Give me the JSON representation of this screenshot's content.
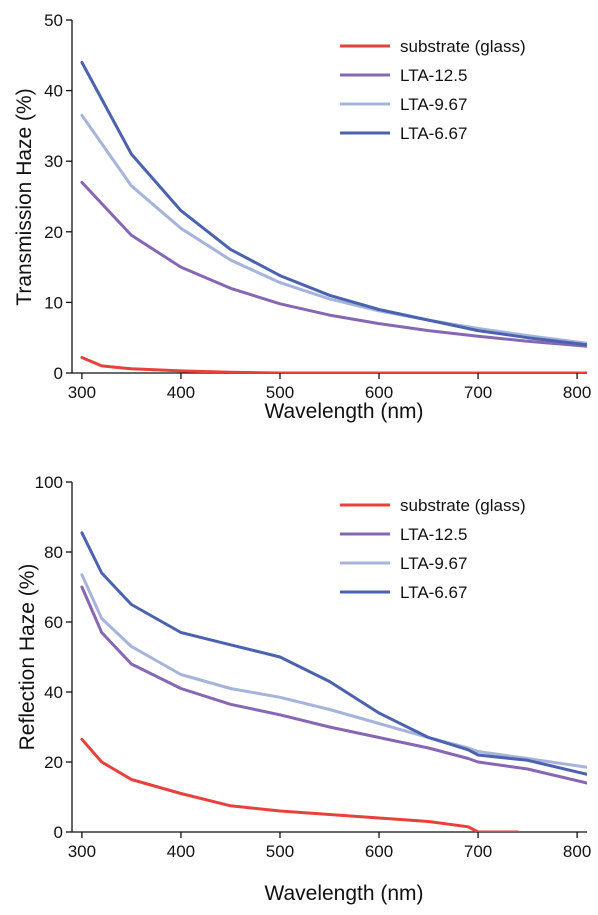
{
  "chart_data": [
    {
      "type": "line",
      "title": "",
      "xlabel": "Wavelength (nm)",
      "ylabel": "Transmission Haze (%)",
      "xlim": [
        290,
        810
      ],
      "ylim": [
        0,
        50
      ],
      "xticks": [
        300,
        400,
        500,
        600,
        700,
        800
      ],
      "yticks": [
        0,
        10,
        20,
        30,
        40,
        50
      ],
      "grid": false,
      "legend_position": "top-right",
      "series": [
        {
          "name": "substrate (glass)",
          "color": "#e8413c",
          "x": [
            300,
            320,
            350,
            400,
            450,
            500,
            600,
            700,
            810
          ],
          "y": [
            2.2,
            1.0,
            0.6,
            0.3,
            0.1,
            0.0,
            0.0,
            0.0,
            0.0
          ]
        },
        {
          "name": "LTA-12.5",
          "color": "#8667b3",
          "x": [
            300,
            350,
            400,
            450,
            500,
            550,
            600,
            650,
            700,
            750,
            810
          ],
          "y": [
            27,
            19.5,
            15,
            12,
            9.8,
            8.2,
            7,
            6,
            5.2,
            4.5,
            3.8
          ]
        },
        {
          "name": "LTA-9.67",
          "color": "#a6b4dc",
          "x": [
            300,
            350,
            400,
            450,
            500,
            550,
            600,
            650,
            700,
            750,
            810
          ],
          "y": [
            36.5,
            26.5,
            20.5,
            16,
            12.8,
            10.5,
            8.8,
            7.5,
            6.3,
            5.3,
            4.2
          ]
        },
        {
          "name": "LTA-6.67",
          "color": "#4b62ae",
          "x": [
            300,
            350,
            400,
            450,
            500,
            550,
            600,
            650,
            700,
            750,
            810
          ],
          "y": [
            44,
            31,
            23,
            17.5,
            13.8,
            11,
            9,
            7.5,
            6,
            5,
            4
          ]
        }
      ]
    },
    {
      "type": "line",
      "title": "",
      "xlabel": "Wavelength (nm)",
      "ylabel": "Reflection Haze (%)",
      "xlim": [
        290,
        810
      ],
      "ylim": [
        0,
        100
      ],
      "xticks": [
        300,
        400,
        500,
        600,
        700,
        800
      ],
      "yticks": [
        0,
        20,
        40,
        60,
        80,
        100
      ],
      "grid": false,
      "legend_position": "top-right",
      "series": [
        {
          "name": "substrate (glass)",
          "color": "#e8413c",
          "x": [
            300,
            320,
            350,
            400,
            450,
            500,
            550,
            600,
            650,
            690,
            700,
            740
          ],
          "y": [
            26.5,
            20,
            15,
            11,
            7.5,
            6,
            5,
            4,
            3,
            1.5,
            0,
            0
          ]
        },
        {
          "name": "LTA-12.5",
          "color": "#8667b3",
          "x": [
            300,
            320,
            350,
            400,
            450,
            500,
            550,
            600,
            650,
            690,
            700,
            750,
            810
          ],
          "y": [
            70,
            57,
            48,
            41,
            36.5,
            33.5,
            30,
            27,
            24,
            21,
            20,
            18,
            14
          ]
        },
        {
          "name": "LTA-9.67",
          "color": "#a6b4dc",
          "x": [
            300,
            320,
            350,
            400,
            450,
            500,
            550,
            600,
            650,
            690,
            700,
            750,
            810
          ],
          "y": [
            73.5,
            61,
            53,
            45,
            41,
            38.5,
            35,
            31,
            27,
            24,
            23,
            21,
            18.5
          ]
        },
        {
          "name": "LTA-6.67",
          "color": "#4b62ae",
          "x": [
            300,
            320,
            350,
            400,
            450,
            500,
            550,
            600,
            650,
            690,
            700,
            750,
            810
          ],
          "y": [
            85.5,
            74,
            65,
            57,
            53.5,
            50,
            43,
            34,
            27,
            23.5,
            22,
            20.5,
            16.5
          ]
        }
      ]
    }
  ]
}
